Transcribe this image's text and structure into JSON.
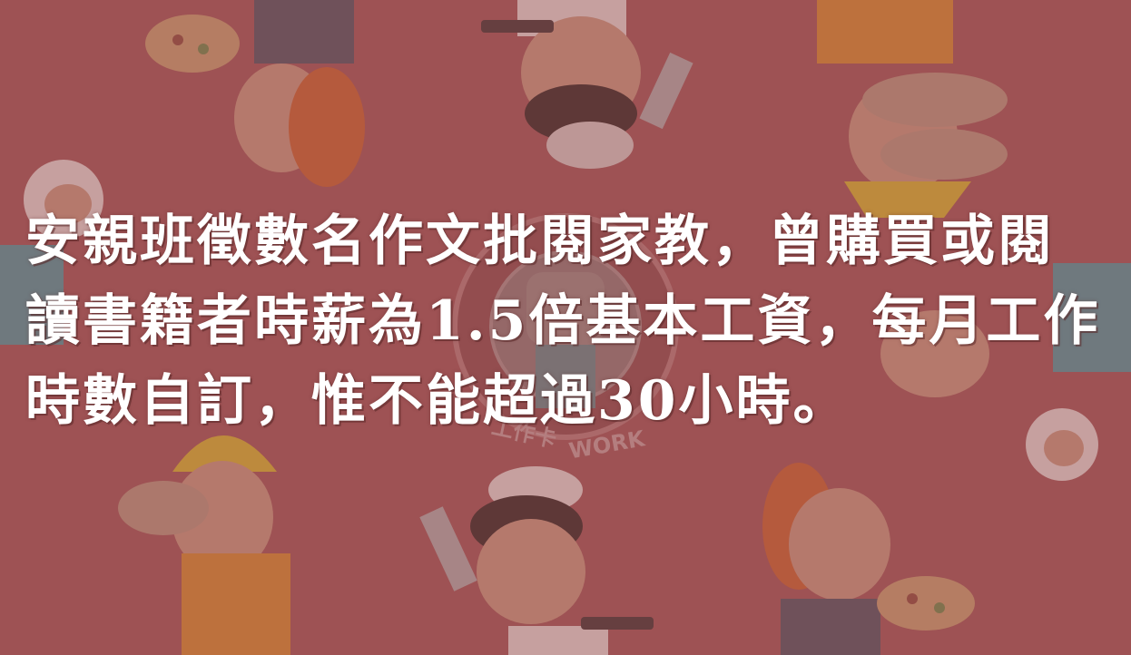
{
  "caption": {
    "text": "安親班徵數名作文批閱家教，曾購買或閱讀書籍者時薪為1.5倍基本工資，每月工作時數自訂，惟不能超過30小時。"
  },
  "logo": {
    "text_cn": "工作卡",
    "text_en": "WORK"
  },
  "colors": {
    "background": "#9e5254",
    "text": "#ffffff"
  }
}
